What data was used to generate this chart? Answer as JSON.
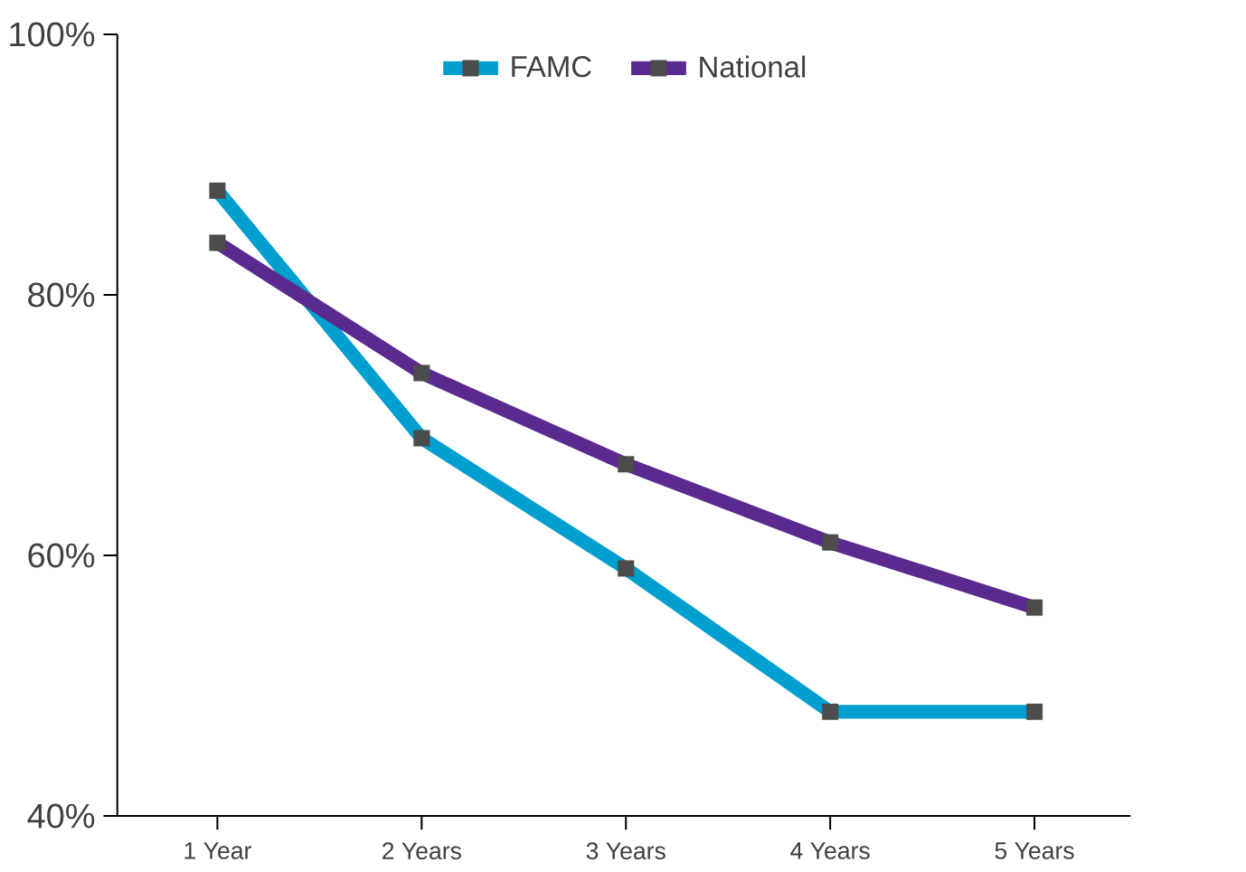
{
  "chart_data": {
    "type": "line",
    "categories": [
      "1 Year",
      "2 Years",
      "3 Years",
      "4 Years",
      "5 Years"
    ],
    "series": [
      {
        "name": "FAMC",
        "color": "#009fd0",
        "values": [
          88,
          69,
          59,
          48,
          48
        ]
      },
      {
        "name": "National",
        "color": "#5b2a8e",
        "values": [
          84,
          74,
          67,
          61,
          56
        ]
      }
    ],
    "ylim": [
      40,
      100
    ],
    "yticks": [
      {
        "value": 40,
        "label": "40%"
      },
      {
        "value": 60,
        "label": "60%"
      },
      {
        "value": 80,
        "label": "80%"
      },
      {
        "value": 100,
        "label": "100%"
      }
    ],
    "grid": false,
    "legend": "top",
    "marker": "square",
    "line_style": "solid"
  }
}
